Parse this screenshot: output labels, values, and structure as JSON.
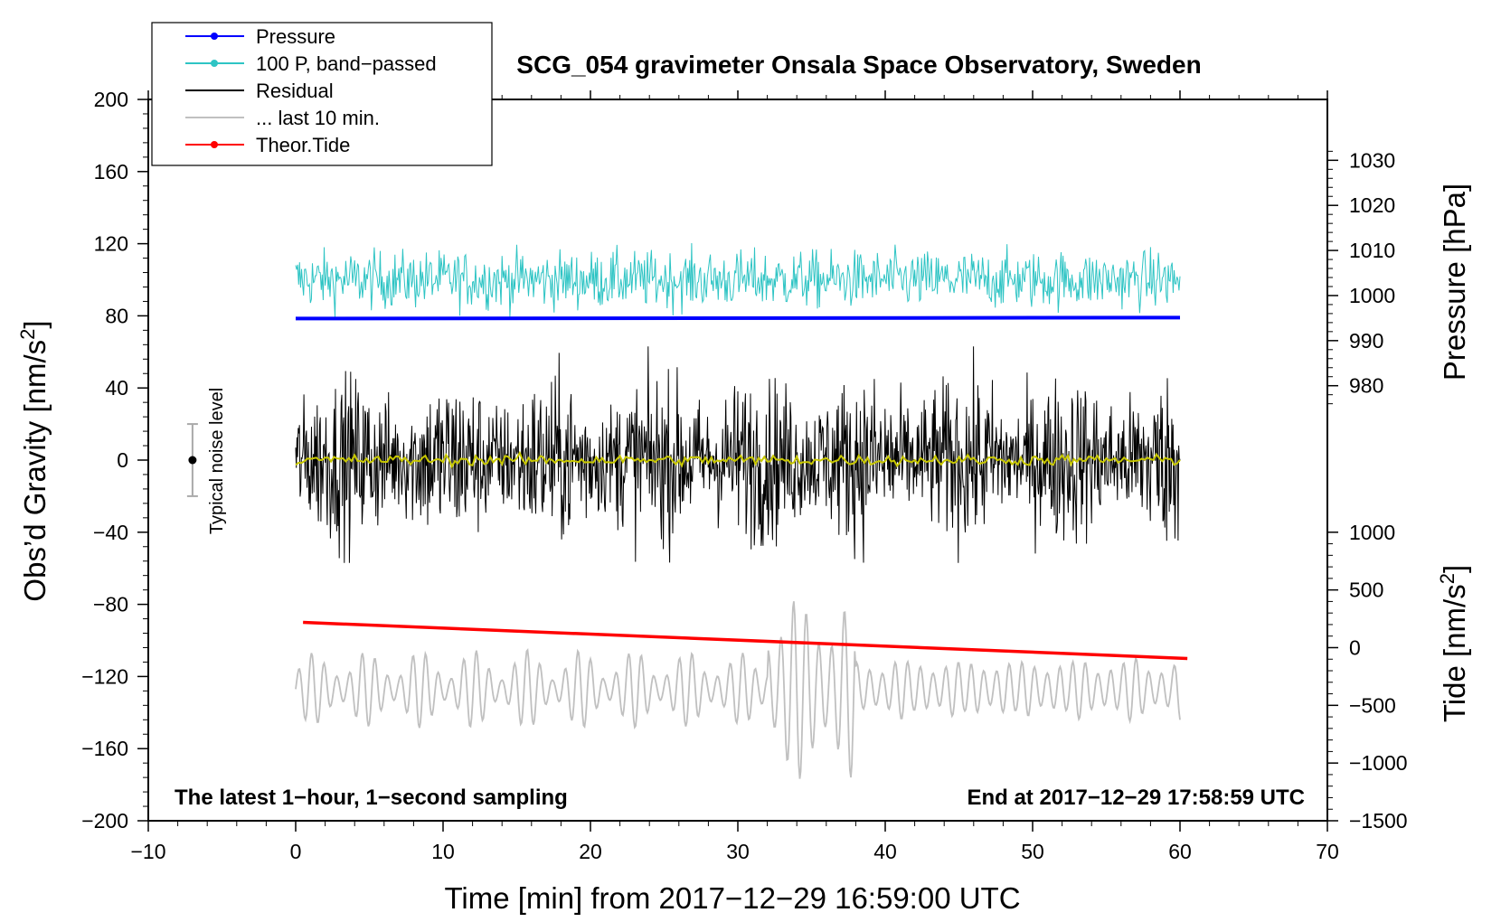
{
  "chart_data": {
    "type": "line",
    "title": "SCG_054 gravimeter Onsala Space Observatory, Sweden",
    "xlabel": "Time [min] from 2017−12−29 16:59:00 UTC",
    "ylabel_left": "Obs’d Gravity [nm/s",
    "ylabel_left_sup": "2",
    "ylabel_left_end": "]",
    "ylabel_right_pressure": "Pressure [hPa]",
    "ylabel_right_tide": "Tide [nm/s",
    "ylabel_right_tide_sup": "2",
    "ylabel_right_tide_end": "]",
    "xlim": [
      -10,
      70
    ],
    "ylim": [
      -200,
      200
    ],
    "x_ticks": [
      -10,
      0,
      10,
      20,
      30,
      40,
      50,
      60,
      70
    ],
    "x_tick_labels": [
      "−10",
      "0",
      "10",
      "20",
      "30",
      "40",
      "50",
      "60",
      "70"
    ],
    "y_ticks": [
      -200,
      -160,
      -120,
      -80,
      -40,
      0,
      40,
      80,
      120,
      160,
      200
    ],
    "y_tick_labels": [
      "−200",
      "−160",
      "−120",
      "−80",
      "−40",
      "0",
      "40",
      "80",
      "120",
      "160",
      "200"
    ],
    "pressure_ticks": [
      980,
      990,
      1000,
      1010,
      1020,
      1030
    ],
    "pressure_tick_labels": [
      "980",
      "990",
      "1000",
      "1010",
      "1020",
      "1030"
    ],
    "pressure_axis": {
      "gravity_at": [
        40,
        80
      ],
      "value_at": [
        979.5,
        995.5
      ]
    },
    "tide_ticks": [
      -1500,
      -1000,
      -500,
      0,
      500,
      1000
    ],
    "tide_tick_labels": [
      "−1500",
      "−1000",
      "−500",
      "0",
      "500",
      "1000"
    ],
    "tide_axis": {
      "gravity_at": [
        -200,
        -40
      ],
      "value_at": [
        -1500,
        1000
      ]
    },
    "annotations": {
      "bottom_left": "The latest 1−hour, 1−second sampling",
      "bottom_right": "End at 2017−12−29 17:58:59 UTC",
      "noise_label": "Typical noise level"
    },
    "noise_bar": {
      "x": -7,
      "center": 0,
      "half_range": 20
    },
    "legend": [
      {
        "label": "Pressure",
        "color": "#0000ff",
        "marker": true
      },
      {
        "label": "100 P, band−passed",
        "color": "#2ec4c4",
        "marker": true
      },
      {
        "label": "Residual",
        "color": "#000000",
        "marker": false
      },
      {
        "label": "... last 10 min.",
        "color": "#c0c0c0",
        "marker": false
      },
      {
        "label": "Theor.Tide",
        "color": "#ff0000",
        "marker": true
      }
    ],
    "series": [
      {
        "name": "Pressure",
        "axis": "gravity",
        "color": "#0000ff",
        "x_range": [
          0,
          60
        ],
        "start": 78.5,
        "end": 79.0
      },
      {
        "name": "100 P, band−passed",
        "axis": "gravity",
        "color": "#2ec4c4",
        "x_range": [
          0,
          60
        ],
        "center": 100,
        "amplitude": 8,
        "min": 73,
        "max": 126
      },
      {
        "name": "Residual",
        "axis": "gravity",
        "color": "#000000",
        "x_range": [
          0,
          60
        ],
        "center": 0,
        "amplitude": 18,
        "min": -57,
        "max": 63
      },
      {
        "name": "Residual smoothed",
        "axis": "gravity",
        "color": "#c8c800",
        "x_range": [
          0,
          60
        ],
        "center": 0,
        "amplitude": 1.5
      },
      {
        "name": "... last 10 min.",
        "axis": "gravity",
        "color": "#c0c0c0",
        "x_range": [
          0,
          60
        ],
        "center": -127,
        "amplitude": 20,
        "min": -182,
        "max": -60
      },
      {
        "name": "Theor.Tide",
        "axis": "gravity",
        "color": "#ff0000",
        "x_range": [
          0.5,
          60.5
        ],
        "start": -90,
        "end": -110
      }
    ]
  }
}
